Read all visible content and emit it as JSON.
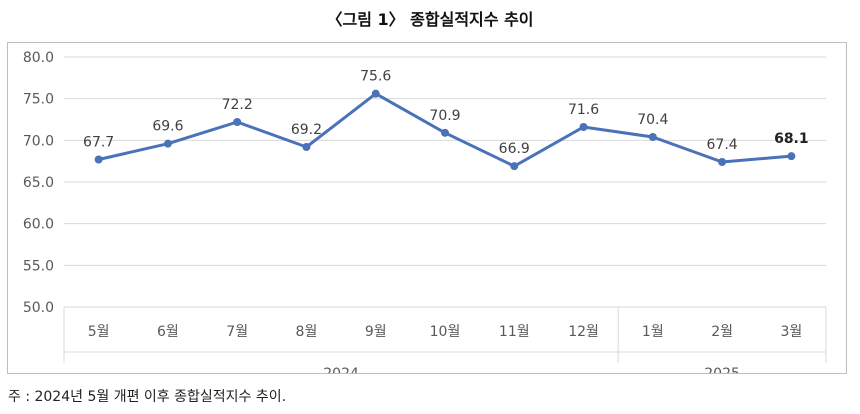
{
  "title": "〈그림 1〉 종합실적지수 추이",
  "note": "주 : 2024년 5월 개편 이후 종합실적지수 추이.",
  "chart_data": {
    "type": "line",
    "categories": [
      "5월",
      "6월",
      "7월",
      "8월",
      "9월",
      "10월",
      "11월",
      "12월",
      "1월",
      "2월",
      "3월"
    ],
    "category_groups": [
      {
        "label": "2024",
        "count": 8
      },
      {
        "label": "2025",
        "count": 3
      }
    ],
    "series": [
      {
        "values": [
          67.7,
          69.6,
          72.2,
          69.2,
          75.6,
          70.9,
          66.9,
          71.6,
          70.4,
          67.4,
          68.1
        ],
        "labels": [
          "67.7",
          "69.6",
          "72.2",
          "69.2",
          "75.6",
          "70.9",
          "66.9",
          "71.6",
          "70.4",
          "67.4",
          "68.1"
        ],
        "color": "#4a72b8"
      }
    ],
    "ylim": [
      50,
      80
    ],
    "yticks": [
      "50.0",
      "55.0",
      "60.0",
      "65.0",
      "70.0",
      "75.0",
      "80.0"
    ],
    "grid": true,
    "legend": "none",
    "highlight_last_label": true
  }
}
